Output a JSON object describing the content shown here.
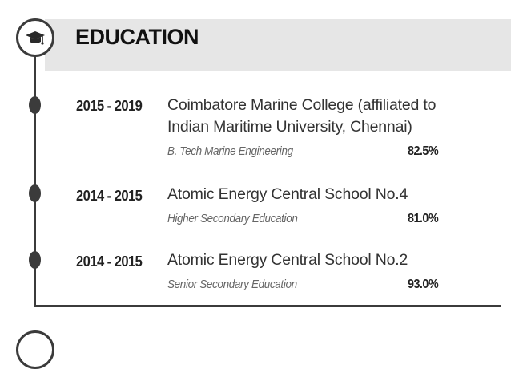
{
  "section": {
    "title": "EDUCATION",
    "icon": "graduation-cap-icon",
    "accent_color": "#3b3b3b",
    "band_color": "#e6e6e6"
  },
  "entries": [
    {
      "years": "2015 - 2019",
      "institution_line1": "Coimbatore Marine College (affiliated to",
      "institution_line2": "Indian Maritime University, Chennai)",
      "degree": "B. Tech Marine Engineering",
      "score": "82.5%"
    },
    {
      "years": "2014 - 2015",
      "institution_line1": "Atomic Energy Central School No.4",
      "degree": "Higher Secondary Education",
      "score": "81.0%"
    },
    {
      "years": "2014 - 2015",
      "institution_line1": "Atomic Energy Central School No.2",
      "degree": "Senior Secondary Education",
      "score": "93.0%"
    }
  ]
}
